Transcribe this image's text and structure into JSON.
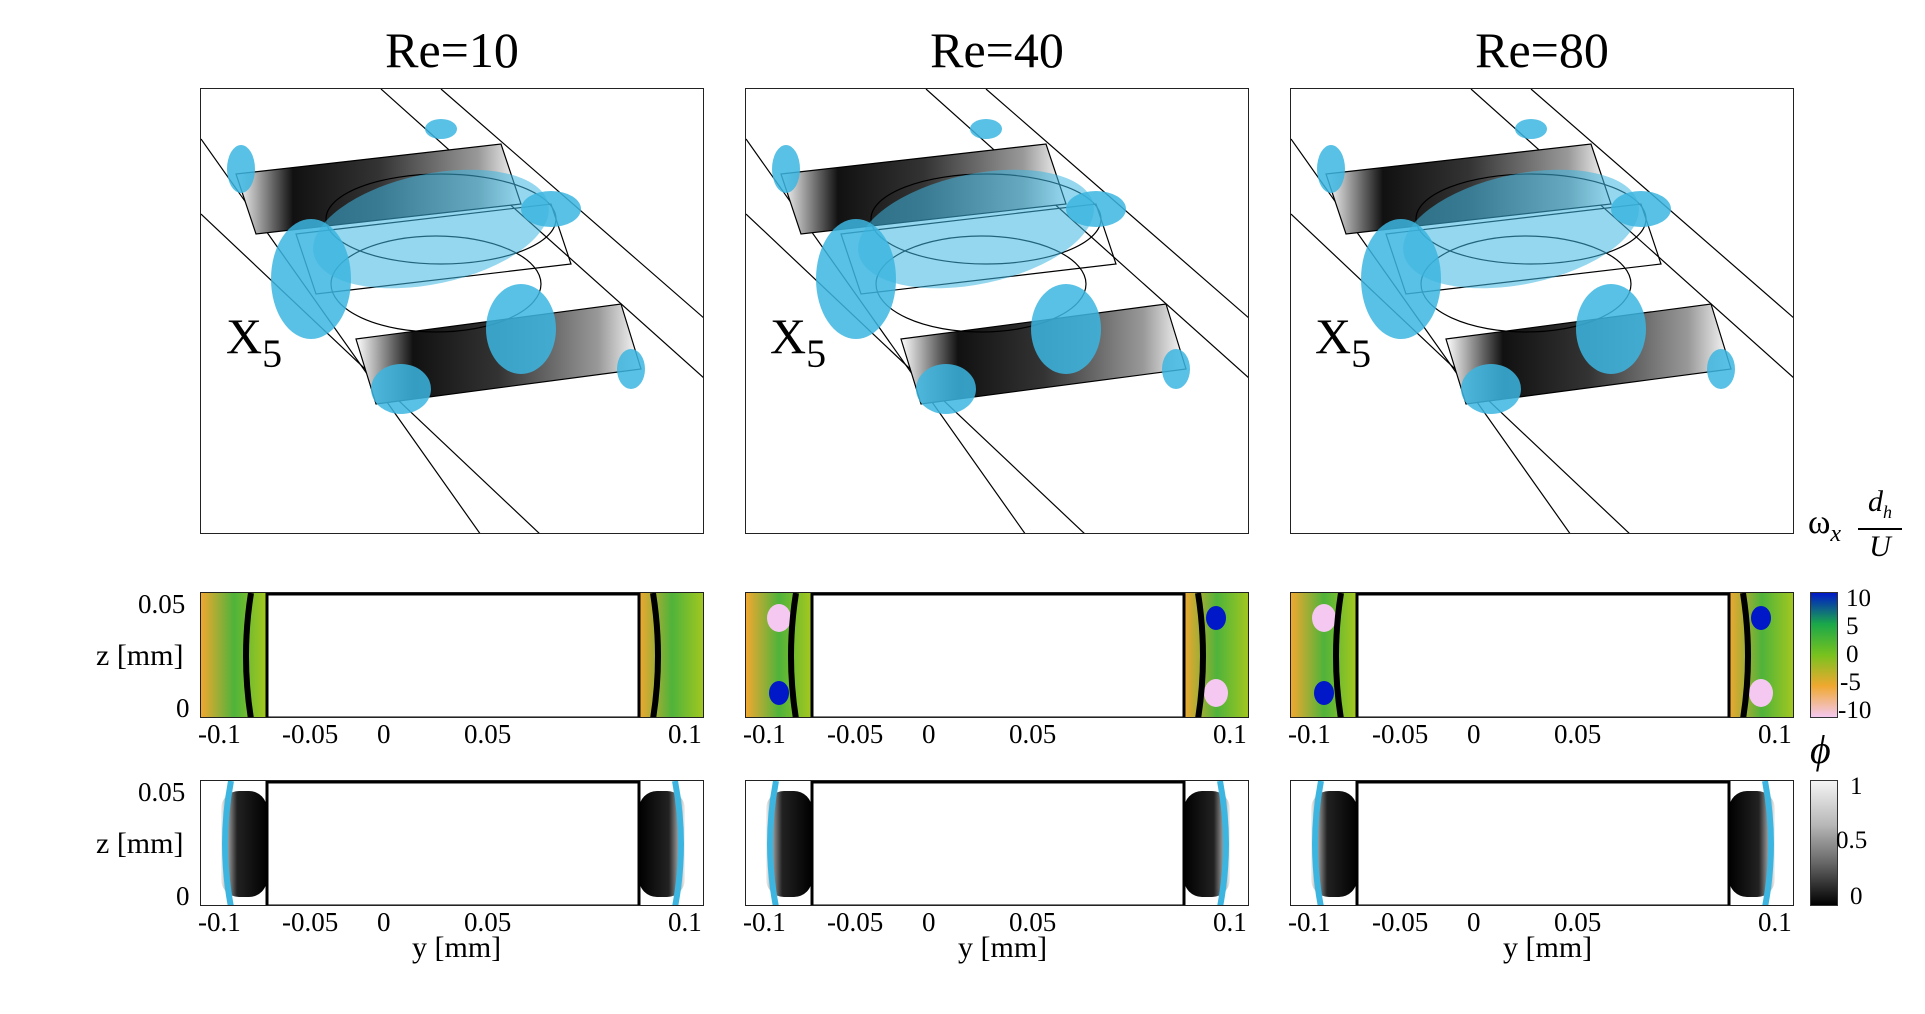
{
  "columns": [
    {
      "title": "Re=10",
      "station": "X",
      "station_sub": "5"
    },
    {
      "title": "Re=40",
      "station": "X",
      "station_sub": "5"
    },
    {
      "title": "Re=80",
      "station": "X",
      "station_sub": "5"
    }
  ],
  "axes": {
    "y_ticks": [
      "-0.1",
      "-0.05",
      "0",
      "0.05",
      "0.1"
    ],
    "z_ticks": [
      "0.05",
      "0"
    ],
    "z_label": "z [mm]",
    "y_label": "y [mm]"
  },
  "colorbar_vorticity": {
    "title_main": "ω",
    "title_sub": "x",
    "title_num": "d",
    "title_num_sub": "h",
    "title_den": "U",
    "ticks": [
      "10",
      "5",
      "0",
      "-5",
      "-10"
    ],
    "colors": [
      "#0018c8",
      "#1aa84a",
      "#78c21e",
      "#f0a830",
      "#f4c8f0"
    ]
  },
  "colorbar_phi": {
    "title": "ϕ",
    "ticks": [
      "1",
      "0.5",
      "0"
    ]
  },
  "colors": {
    "isosurface": "#3cb6e0",
    "line": "#000000"
  }
}
